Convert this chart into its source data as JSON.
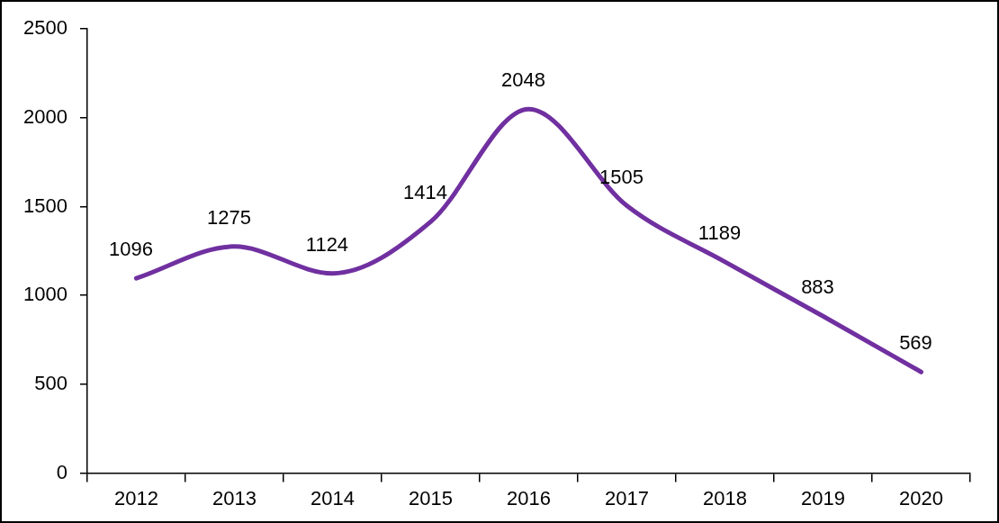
{
  "chart_data": {
    "type": "line",
    "categories": [
      "2012",
      "2013",
      "2014",
      "2015",
      "2016",
      "2017",
      "2018",
      "2019",
      "2020"
    ],
    "series": [
      {
        "color": "#7030a0",
        "values": [
          1096,
          1275,
          1124,
          1414,
          2048,
          1505,
          1189,
          883,
          569
        ]
      }
    ],
    "ylim": [
      0,
      2500
    ],
    "yticks": [
      0,
      500,
      1000,
      1500,
      2000,
      2500
    ],
    "grid": false,
    "legend": false,
    "data_labels": true,
    "marker": "none",
    "line_style": "solid"
  }
}
